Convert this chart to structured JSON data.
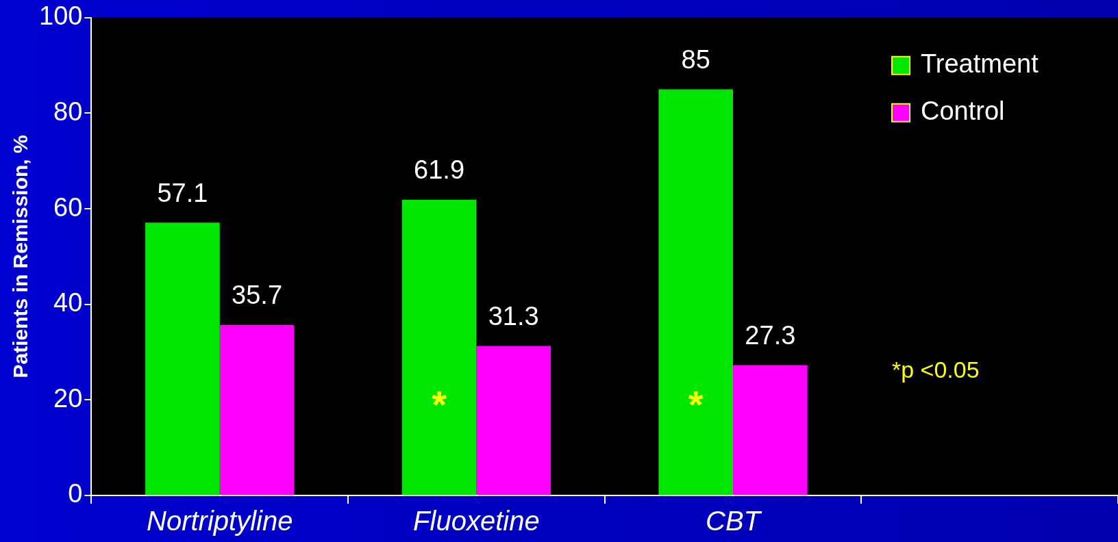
{
  "chart_data": {
    "type": "bar",
    "ylabel": "Patients in Remission, %",
    "categories": [
      "Nortriptyline",
      "Fluoxetine",
      "CBT",
      null
    ],
    "series": [
      {
        "name": "Treatment",
        "color": "#00e600",
        "values": [
          57.1,
          61.9,
          85,
          null
        ]
      },
      {
        "name": "Control",
        "color": "#ff00ff",
        "values": [
          35.7,
          31.3,
          27.3,
          null
        ]
      }
    ],
    "ylim": [
      0,
      100
    ],
    "yticks": [
      0,
      20,
      40,
      60,
      80,
      100
    ],
    "grid": false,
    "legend": "top right",
    "data_labels": true,
    "annotations": [
      {
        "text": "*",
        "x": "Fluoxetine",
        "y": 20
      },
      {
        "text": "*",
        "x": "CBT",
        "y": 20
      },
      "*p <0.05"
    ]
  }
}
